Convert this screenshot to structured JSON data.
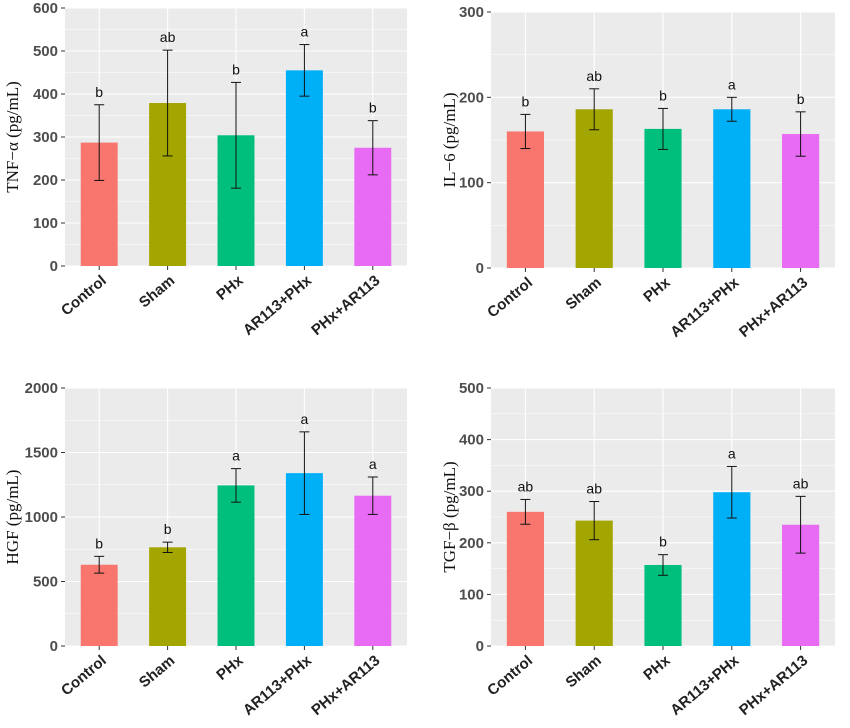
{
  "colors": {
    "Control": "#f8766d",
    "Sham": "#a3a500",
    "PHx": "#00bf7d",
    "AR113+PHx": "#00b0f6",
    "PHx+AR113": "#e76bf3"
  },
  "chart_data": [
    {
      "type": "bar",
      "ylabel": "TNF−α (pg/mL)",
      "ylim": [
        0,
        600
      ],
      "yticks": [
        0,
        100,
        200,
        300,
        400,
        500,
        600
      ],
      "categories": [
        "Control",
        "Sham",
        "PHx",
        "AR113+PHx",
        "PHx+AR113"
      ],
      "values": [
        287,
        379,
        304,
        455,
        275
      ],
      "errors": [
        88,
        123,
        123,
        60,
        63
      ],
      "significance": [
        "b",
        "ab",
        "b",
        "a",
        "b"
      ]
    },
    {
      "type": "bar",
      "ylabel": "IL−6 (pg/mL)",
      "ylim": [
        0,
        300
      ],
      "yticks": [
        0,
        100,
        200,
        300
      ],
      "categories": [
        "Control",
        "Sham",
        "PHx",
        "AR113+PHx",
        "PHx+AR113"
      ],
      "values": [
        160,
        186,
        163,
        186,
        157
      ],
      "errors": [
        20,
        24,
        24,
        14,
        26
      ],
      "significance": [
        "b",
        "ab",
        "b",
        "a",
        "b"
      ]
    },
    {
      "type": "bar",
      "ylabel": "HGF (pg/mL)",
      "ylim": [
        0,
        2000
      ],
      "yticks": [
        0,
        500,
        1000,
        1500,
        2000
      ],
      "categories": [
        "Control",
        "Sham",
        "PHx",
        "AR113+PHx",
        "PHx+AR113"
      ],
      "values": [
        630,
        765,
        1245,
        1340,
        1165
      ],
      "errors": [
        65,
        40,
        130,
        320,
        145
      ],
      "significance": [
        "b",
        "b",
        "a",
        "a",
        "a"
      ]
    },
    {
      "type": "bar",
      "ylabel": "TGF−β (pg/mL)",
      "ylim": [
        0,
        500
      ],
      "yticks": [
        0,
        100,
        200,
        300,
        400,
        500
      ],
      "categories": [
        "Control",
        "Sham",
        "PHx",
        "AR113+PHx",
        "PHx+AR113"
      ],
      "values": [
        260,
        243,
        157,
        298,
        235
      ],
      "errors": [
        24,
        37,
        20,
        50,
        55
      ],
      "significance": [
        "ab",
        "ab",
        "b",
        "a",
        "ab"
      ]
    }
  ]
}
